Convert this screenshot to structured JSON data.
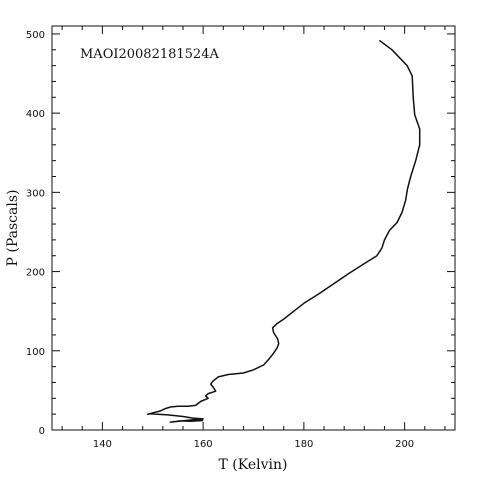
{
  "chart_data": {
    "type": "line",
    "title": "",
    "annotation": "MAOI20082181524A",
    "xlabel": "T (Kelvin)",
    "ylabel": "P (Pascals)",
    "xlim": [
      130,
      210
    ],
    "ylim": [
      0,
      510
    ],
    "x_major_ticks": [
      140,
      160,
      180,
      200
    ],
    "y_major_ticks": [
      0,
      100,
      200,
      300,
      400,
      500
    ],
    "grid": false,
    "series": [
      {
        "name": "",
        "x": [
          160.0,
          157.5,
          155.5,
          153.5,
          158.0,
          160.0,
          158.0,
          156.0,
          153.0,
          151.0,
          149.5,
          149.0,
          151.5,
          152.5,
          153.5,
          155.0,
          157.0,
          158.5,
          159.5,
          161.0,
          160.5,
          161.0,
          162.5,
          162.0,
          161.5,
          162.0,
          163.0,
          165.0,
          168.0,
          170.0,
          172.0,
          173.0,
          174.0,
          174.7,
          175.0,
          174.8,
          174.0,
          173.8,
          174.6,
          176.0,
          178.0,
          180.0,
          183.0,
          186.0,
          189.0,
          192.0,
          194.5,
          195.5,
          196.0,
          197.0,
          198.5,
          199.5,
          200.2,
          200.6,
          201.2,
          202.2,
          203.0,
          203.0,
          202.0,
          201.7,
          201.5,
          200.5,
          197.5,
          195.0
        ],
        "y": [
          12.0,
          11.0,
          11.5,
          10.0,
          13.0,
          14.0,
          15.0,
          17.0,
          19.0,
          20.0,
          20.5,
          20.0,
          24.0,
          27.0,
          29.0,
          30.0,
          30.0,
          31.0,
          36.0,
          40.0,
          43.0,
          46.0,
          49.0,
          54.0,
          58.0,
          62.0,
          67.0,
          70.0,
          72.0,
          76.0,
          82.0,
          89.0,
          97.0,
          104.0,
          109.0,
          115.0,
          123.0,
          129.0,
          134.0,
          140.0,
          150.0,
          160.0,
          172.0,
          185.0,
          198.0,
          210.0,
          220.0,
          230.0,
          240.0,
          252.0,
          262.0,
          275.0,
          290.0,
          305.0,
          320.0,
          340.0,
          360.0,
          380.0,
          398.0,
          420.0,
          447.0,
          460.0,
          480.0,
          492.0
        ]
      }
    ]
  }
}
